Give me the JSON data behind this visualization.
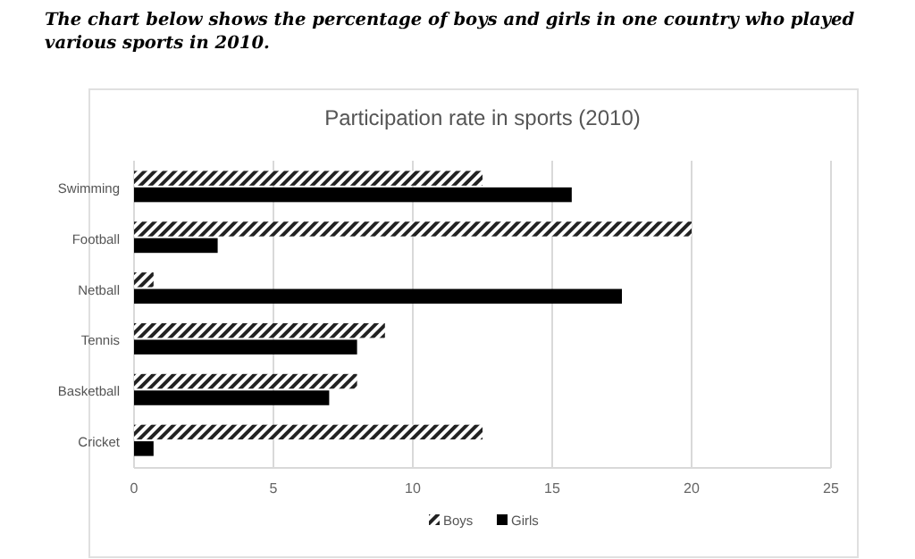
{
  "chart_data": {
    "type": "bar",
    "orientation": "horizontal",
    "title": "The chart below shows the percentage of boys and girls in one country who played various sports in 2010.",
    "subtitle": "Participation rate in sports (2010)",
    "categories": [
      "Swimming",
      "Football",
      "Netball",
      "Tennis",
      "Basketball",
      "Cricket"
    ],
    "series": [
      {
        "name": "Boys",
        "color": "#222222",
        "values": [
          12.5,
          20,
          0.7,
          9,
          8,
          12.5
        ]
      },
      {
        "name": "Girls",
        "color": "#000000",
        "values": [
          15.7,
          3,
          17.5,
          8,
          7,
          0.7
        ]
      }
    ],
    "xlim": [
      0,
      25
    ],
    "xticks": [
      0,
      5,
      10,
      15,
      20,
      25
    ],
    "grid": "x",
    "legend": "bottom",
    "tick_labels": "x"
  }
}
